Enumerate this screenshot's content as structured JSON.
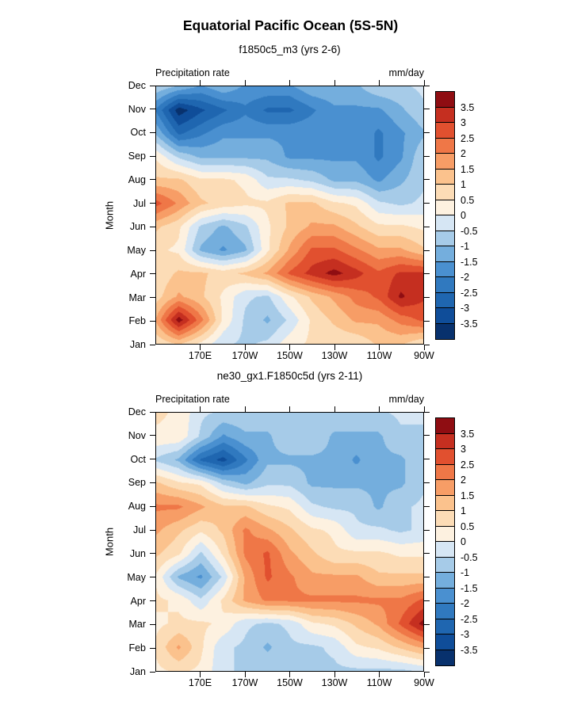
{
  "title": "Equatorial Pacific Ocean (5S-5N)",
  "panels": [
    {
      "subtitle": "f1850c5_m3 (yrs 2-6)",
      "left_label": "Precipitation rate",
      "right_label": "mm/day",
      "y_axis_label": "Month"
    },
    {
      "subtitle": "ne30_gx1.F1850c5d (yrs 2-11)",
      "left_label": "Precipitation rate",
      "right_label": "mm/day",
      "y_axis_label": "Month"
    }
  ],
  "colorbar": {
    "labels_top_to_bottom": [
      "3.5",
      "3",
      "2.5",
      "2",
      "1.5",
      "1",
      "0.5",
      "0",
      "-0.5",
      "-1",
      "-1.5",
      "-2",
      "-2.5",
      "-3",
      "-3.5"
    ],
    "colors_bottom_to_top": [
      "#08316d",
      "#0f4d99",
      "#1f66b0",
      "#3079bf",
      "#4a90d0",
      "#74aedd",
      "#a6cbe8",
      "#d6e6f4",
      "#fdf1e0",
      "#fcdcb6",
      "#fbc28d",
      "#f79d66",
      "#ef7747",
      "#e1502f",
      "#c52f20",
      "#8f0d12"
    ]
  },
  "chart_data": [
    {
      "type": "heatmap",
      "title": "f1850c5_m3 (yrs 2-6)",
      "variable": "Precipitation rate",
      "units": "mm/day",
      "x_longitudes_deg_east": [
        150,
        160,
        170,
        180,
        190,
        200,
        210,
        220,
        230,
        240,
        250,
        260,
        270
      ],
      "x_tick_labels": [
        "170E",
        "170W",
        "150W",
        "130W",
        "110W",
        "90W"
      ],
      "x_tick_positions_deg_east": [
        170,
        190,
        210,
        230,
        250,
        270
      ],
      "y_categories": [
        "Jan",
        "Feb",
        "Mar",
        "Apr",
        "May",
        "Jun",
        "Jul",
        "Aug",
        "Sep",
        "Oct",
        "Nov",
        "Dec"
      ],
      "contour_levels": [
        -3.5,
        -3,
        -2.5,
        -2,
        -1.5,
        -1,
        -0.5,
        0,
        0.5,
        1,
        1.5,
        2,
        2.5,
        3,
        3.5
      ],
      "grid_rows_jan_to_dec": [
        [
          0.6,
          1.1,
          0.4,
          -0.4,
          -0.6,
          -0.4,
          0.3,
          0.6,
          0.6,
          0.6,
          1.1,
          1.1,
          0.6
        ],
        [
          1.6,
          3.8,
          2.2,
          0.4,
          -0.6,
          -1.1,
          -0.4,
          0.6,
          1.1,
          1.6,
          1.6,
          2.2,
          2.6
        ],
        [
          0.8,
          1.6,
          1.1,
          0.4,
          -0.4,
          -0.6,
          0.4,
          1.1,
          1.6,
          2.2,
          2.6,
          3.6,
          3.1
        ],
        [
          0.6,
          1.1,
          1.1,
          0.8,
          1.1,
          1.6,
          2.6,
          3.2,
          3.7,
          3.2,
          2.6,
          3.1,
          3.1
        ],
        [
          0.6,
          0.4,
          -1.1,
          -1.6,
          -1.1,
          0.4,
          1.6,
          2.6,
          2.6,
          2.1,
          1.6,
          1.6,
          1.1
        ],
        [
          1.1,
          0.6,
          -0.6,
          -1.1,
          -0.6,
          0.4,
          1.1,
          1.6,
          1.6,
          1.1,
          0.6,
          0.6,
          0.4
        ],
        [
          2.7,
          1.9,
          1.1,
          0.8,
          0.6,
          0.6,
          1.1,
          1.1,
          0.6,
          0.4,
          -0.4,
          -0.6,
          -0.4
        ],
        [
          1.1,
          1.1,
          0.6,
          0.6,
          0.4,
          -0.4,
          -0.4,
          -0.6,
          -1.1,
          -1.1,
          -1.6,
          -1.1,
          -0.6
        ],
        [
          0.4,
          -0.6,
          -1.1,
          -1.1,
          -1.1,
          -1.1,
          -1.6,
          -1.6,
          -1.6,
          -1.6,
          -2.1,
          -1.6,
          -0.6
        ],
        [
          -1.1,
          -2.6,
          -2.1,
          -1.6,
          -1.6,
          -1.6,
          -1.6,
          -1.6,
          -1.6,
          -1.6,
          -2.1,
          -1.6,
          -1.1
        ],
        [
          -2.1,
          -3.8,
          -3.1,
          -2.6,
          -2.1,
          -2.6,
          -2.6,
          -2.1,
          -1.6,
          -1.6,
          -1.6,
          -1.1,
          -0.6
        ],
        [
          -0.6,
          -1.1,
          -1.6,
          -1.1,
          -1.6,
          -1.6,
          -1.6,
          -1.1,
          -1.1,
          -1.1,
          -0.6,
          -0.6,
          -0.4
        ]
      ]
    },
    {
      "type": "heatmap",
      "title": "ne30_gx1.F1850c5d (yrs 2-11)",
      "variable": "Precipitation rate",
      "units": "mm/day",
      "x_longitudes_deg_east": [
        150,
        160,
        170,
        180,
        190,
        200,
        210,
        220,
        230,
        240,
        250,
        260,
        270
      ],
      "x_tick_labels": [
        "170E",
        "170W",
        "150W",
        "130W",
        "110W",
        "90W"
      ],
      "x_tick_positions_deg_east": [
        170,
        190,
        210,
        230,
        250,
        270
      ],
      "y_categories": [
        "Jan",
        "Feb",
        "Mar",
        "Apr",
        "May",
        "Jun",
        "Jul",
        "Aug",
        "Sep",
        "Oct",
        "Nov",
        "Dec"
      ],
      "contour_levels": [
        -3.5,
        -3,
        -2.5,
        -2,
        -1.5,
        -1,
        -0.5,
        0,
        0.5,
        1,
        1.5,
        2,
        2.5,
        3,
        3.5
      ],
      "grid_rows_jan_to_dec": [
        [
          0.4,
          0.6,
          0.4,
          -0.4,
          -0.6,
          -0.6,
          -0.6,
          -0.6,
          -0.6,
          -0.6,
          -0.6,
          -0.6,
          -0.4
        ],
        [
          0.6,
          1.6,
          0.6,
          -0.4,
          -0.6,
          -1.1,
          -0.6,
          -0.6,
          -0.4,
          0.4,
          0.6,
          1.1,
          1.6
        ],
        [
          0.4,
          0.6,
          0.6,
          0.4,
          -0.4,
          -0.6,
          -0.4,
          0.4,
          0.6,
          1.1,
          1.6,
          2.6,
          3.7
        ],
        [
          0.6,
          0.4,
          -0.4,
          0.6,
          1.6,
          2.1,
          2.1,
          2.1,
          2.1,
          2.1,
          2.1,
          2.1,
          2.6
        ],
        [
          0.4,
          -1.1,
          -1.6,
          -0.4,
          1.6,
          2.6,
          2.1,
          1.6,
          1.6,
          1.6,
          1.1,
          1.1,
          1.1
        ],
        [
          1.1,
          0.6,
          -0.6,
          0.6,
          2.1,
          2.6,
          1.6,
          1.1,
          0.6,
          0.6,
          0.6,
          0.4,
          0.4
        ],
        [
          1.6,
          1.1,
          0.6,
          1.1,
          2.1,
          1.6,
          1.1,
          0.6,
          0.4,
          -0.4,
          -0.4,
          -0.6,
          -0.4
        ],
        [
          2.1,
          2.1,
          1.6,
          1.1,
          1.1,
          0.6,
          0.4,
          -0.4,
          -0.6,
          -0.6,
          -1.1,
          -0.6,
          -0.4
        ],
        [
          1.1,
          0.6,
          0.4,
          -0.6,
          -1.1,
          -0.6,
          -0.6,
          -1.1,
          -1.1,
          -1.1,
          -1.1,
          -1.1,
          -0.6
        ],
        [
          -0.6,
          -1.1,
          -2.6,
          -3.2,
          -2.1,
          -1.1,
          -1.1,
          -1.1,
          -1.1,
          -1.6,
          -1.1,
          -1.1,
          -0.6
        ],
        [
          0.4,
          0.4,
          -0.6,
          -1.6,
          -1.1,
          -1.1,
          -0.6,
          -0.6,
          -1.1,
          -1.1,
          -1.1,
          -0.6,
          -0.6
        ],
        [
          0.6,
          0.4,
          -0.4,
          -0.6,
          -0.6,
          -0.6,
          -0.6,
          -0.6,
          -0.6,
          -0.6,
          -0.6,
          -0.4,
          -0.4
        ]
      ]
    }
  ]
}
